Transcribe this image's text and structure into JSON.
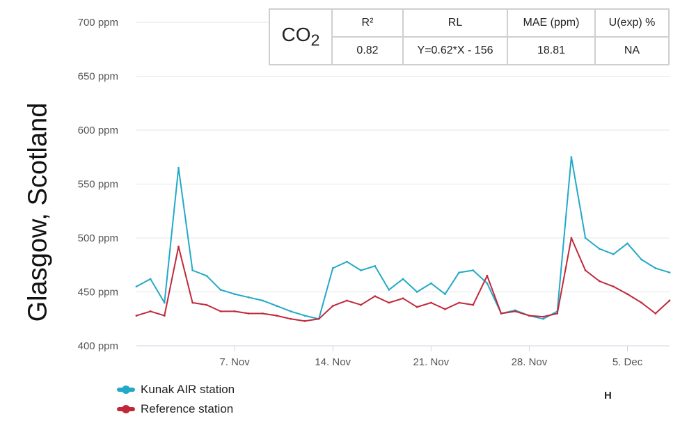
{
  "title": "Glasgow, Scotland",
  "table": {
    "gas_main": "CO",
    "gas_sub": "2",
    "headers": [
      "R²",
      "RL",
      "MAE (ppm)",
      "U(exp) %"
    ],
    "values": [
      "0.82",
      "Y=0.62*X - 156",
      "18.81",
      "NA"
    ]
  },
  "legend": [
    "Kunak AIR station",
    "Reference station"
  ],
  "corner_label": "H",
  "colors": {
    "kunak": "#22a9c8",
    "reference": "#c0283a",
    "grid": "#e4e4e4",
    "axis": "#cfd6e0",
    "tick_text": "#555555"
  },
  "chart_data": {
    "type": "line",
    "title": "",
    "xlabel": "",
    "ylabel": "",
    "y_unit": "ppm",
    "ylim": [
      400,
      700
    ],
    "yticks": [
      400,
      450,
      500,
      550,
      600,
      650,
      700
    ],
    "ytick_labels": [
      "400 ppm",
      "450 ppm",
      "500 ppm",
      "550 ppm",
      "600 ppm",
      "650 ppm",
      "700 ppm"
    ],
    "xlim": [
      "2022-10-31",
      "2022-12-08"
    ],
    "xticks": [
      "2022-11-07",
      "2022-11-14",
      "2022-11-21",
      "2022-11-28",
      "2022-12-05"
    ],
    "xtick_labels": [
      "7. Nov",
      "14. Nov",
      "21. Nov",
      "28. Nov",
      "5. Dec"
    ],
    "grid": true,
    "legend_position": "bottom-left",
    "x": [
      "2022-10-31",
      "2022-11-01",
      "2022-11-02",
      "2022-11-03",
      "2022-11-04",
      "2022-11-05",
      "2022-11-06",
      "2022-11-07",
      "2022-11-08",
      "2022-11-09",
      "2022-11-10",
      "2022-11-11",
      "2022-11-12",
      "2022-11-13",
      "2022-11-14",
      "2022-11-15",
      "2022-11-16",
      "2022-11-17",
      "2022-11-18",
      "2022-11-19",
      "2022-11-20",
      "2022-11-21",
      "2022-11-22",
      "2022-11-23",
      "2022-11-24",
      "2022-11-25",
      "2022-11-26",
      "2022-11-27",
      "2022-11-28",
      "2022-11-29",
      "2022-11-30",
      "2022-12-01",
      "2022-12-02",
      "2022-12-03",
      "2022-12-04",
      "2022-12-05",
      "2022-12-06",
      "2022-12-07",
      "2022-12-08"
    ],
    "series": [
      {
        "name": "Kunak AIR station",
        "values": [
          455,
          462,
          440,
          565,
          470,
          465,
          452,
          448,
          445,
          442,
          437,
          432,
          428,
          425,
          472,
          478,
          470,
          474,
          452,
          462,
          450,
          458,
          448,
          468,
          470,
          458,
          430,
          433,
          428,
          425,
          432,
          575,
          500,
          490,
          485,
          495,
          480,
          472,
          468
        ]
      },
      {
        "name": "Reference station",
        "values": [
          428,
          432,
          428,
          492,
          440,
          438,
          432,
          432,
          430,
          430,
          428,
          425,
          423,
          425,
          437,
          442,
          438,
          446,
          440,
          444,
          436,
          440,
          434,
          440,
          438,
          465,
          430,
          432,
          428,
          427,
          430,
          500,
          470,
          460,
          455,
          448,
          440,
          430,
          442
        ]
      }
    ]
  }
}
